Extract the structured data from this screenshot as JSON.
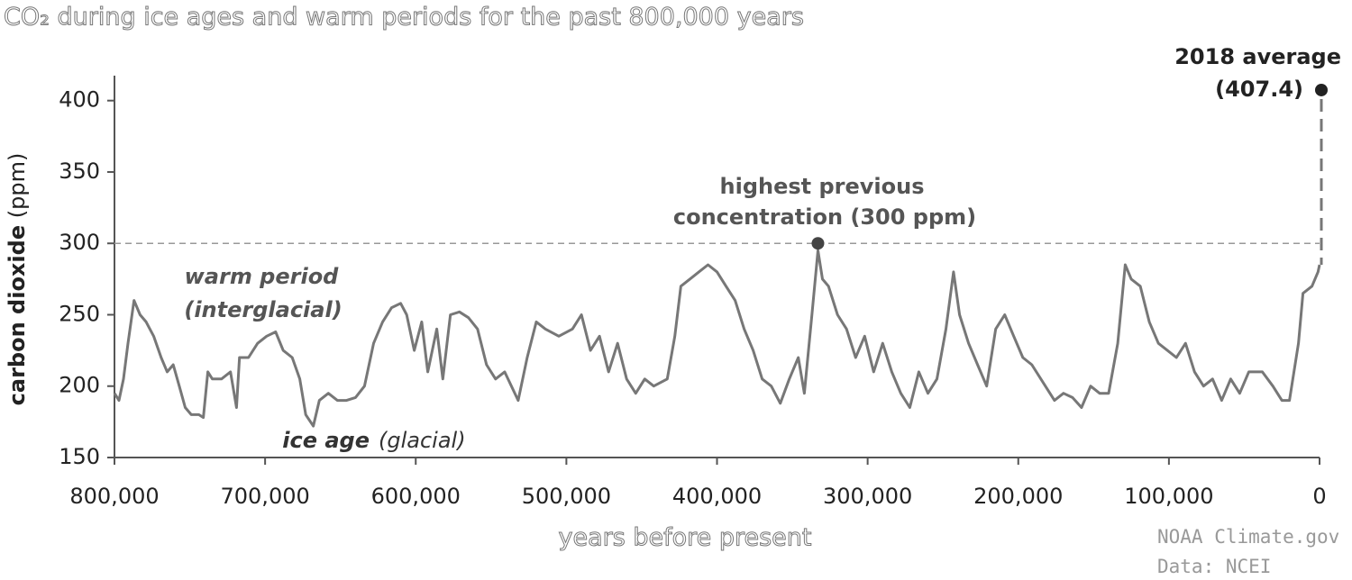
{
  "chart_data": {
    "type": "line",
    "title": "CO₂ during ice ages and warm periods for the past 800,000 years",
    "x_label": "years before present",
    "y_label": {
      "main": "carbon dioxide",
      "unit": "(ppm)"
    },
    "xlim": [
      800000,
      0
    ],
    "xticks": [
      {
        "value": 800000,
        "label": "800,000"
      },
      {
        "value": 700000,
        "label": "700,000"
      },
      {
        "value": 600000,
        "label": "600,000"
      },
      {
        "value": 500000,
        "label": "500,000"
      },
      {
        "value": 400000,
        "label": "400,000"
      },
      {
        "value": 300000,
        "label": "300,000"
      },
      {
        "value": 200000,
        "label": "200,000"
      },
      {
        "value": 100000,
        "label": "100,000"
      },
      0
    ],
    "ylim": [
      150,
      420
    ],
    "yticks": [
      150,
      200,
      250,
      300,
      350,
      400
    ],
    "reference_value": 300,
    "color": "#777777",
    "series": [
      {
        "name": "CO2",
        "color": "#777777",
        "x": [
          800000,
          797000,
          794000,
          791000,
          787000,
          783000,
          779000,
          774000,
          769000,
          765000,
          761000,
          757000,
          753000,
          749000,
          744000,
          741000,
          738000,
          735000,
          729000,
          723000,
          719000,
          717000,
          711000,
          705000,
          699000,
          693000,
          688000,
          682000,
          677000,
          673000,
          668000,
          664000,
          658000,
          652000,
          646000,
          640000,
          634000,
          628000,
          622000,
          616000,
          610000,
          606000,
          601000,
          596000,
          592000,
          586000,
          582000,
          577000,
          571000,
          565000,
          559000,
          553000,
          547000,
          541000,
          532000,
          526000,
          520000,
          514000,
          505000,
          496000,
          490000,
          484000,
          478000,
          472000,
          466000,
          460000,
          454000,
          448000,
          442000,
          433000,
          428000,
          424000,
          418000,
          412000,
          406000,
          400000,
          394000,
          388000,
          382000,
          376000,
          370000,
          364000,
          358000,
          352000,
          346000,
          342000,
          337000,
          333000,
          330000,
          326000,
          320000,
          314000,
          308000,
          302000,
          296000,
          290000,
          284000,
          278000,
          272000,
          266000,
          260000,
          254000,
          248000,
          243000,
          239000,
          233000,
          227000,
          221000,
          215000,
          209000,
          203000,
          197000,
          191000,
          182000,
          176000,
          170000,
          164000,
          158000,
          152000,
          146000,
          140000,
          134000,
          129000,
          125000,
          119000,
          113000,
          107000,
          101000,
          95000,
          89000,
          83000,
          77000,
          71000,
          65000,
          59000,
          53000,
          47000,
          38000,
          31000,
          25000,
          20000,
          14000,
          11000,
          5000,
          1000,
          0
        ],
        "values": [
          195,
          190,
          205,
          230,
          260,
          250,
          245,
          235,
          220,
          210,
          215,
          200,
          185,
          180,
          180,
          178,
          210,
          205,
          205,
          210,
          185,
          220,
          220,
          230,
          235,
          238,
          225,
          220,
          205,
          180,
          172,
          190,
          195,
          190,
          190,
          192,
          200,
          230,
          245,
          255,
          258,
          250,
          225,
          245,
          210,
          240,
          205,
          250,
          252,
          248,
          240,
          215,
          205,
          210,
          190,
          220,
          245,
          240,
          235,
          240,
          250,
          225,
          235,
          210,
          230,
          205,
          195,
          205,
          200,
          205,
          235,
          270,
          275,
          280,
          285,
          280,
          270,
          260,
          240,
          225,
          205,
          200,
          188,
          205,
          220,
          195,
          250,
          295,
          275,
          270,
          250,
          240,
          220,
          235,
          210,
          230,
          210,
          195,
          185,
          210,
          195,
          205,
          240,
          280,
          250,
          230,
          215,
          200,
          240,
          250,
          235,
          220,
          215,
          200,
          190,
          195,
          192,
          185,
          200,
          195,
          195,
          230,
          285,
          275,
          270,
          245,
          230,
          225,
          220,
          230,
          210,
          200,
          205,
          190,
          205,
          195,
          210,
          210,
          200,
          190,
          190,
          230,
          265,
          270,
          280,
          285
        ]
      }
    ],
    "highlights": [
      {
        "label": [
          "highest previous",
          "concentration (300 ppm)"
        ],
        "x": 333000,
        "value": 300
      },
      {
        "label": [
          "2018 average",
          "(407.4)"
        ],
        "x": 0,
        "value": 407.4
      }
    ],
    "annotations": [
      {
        "main": "warm period",
        "sub": "(interglacial)"
      },
      {
        "main": "ice age",
        "sub": "(glacial)"
      }
    ],
    "credit": [
      "NOAA Climate.gov",
      "Data: NCEI"
    ]
  }
}
